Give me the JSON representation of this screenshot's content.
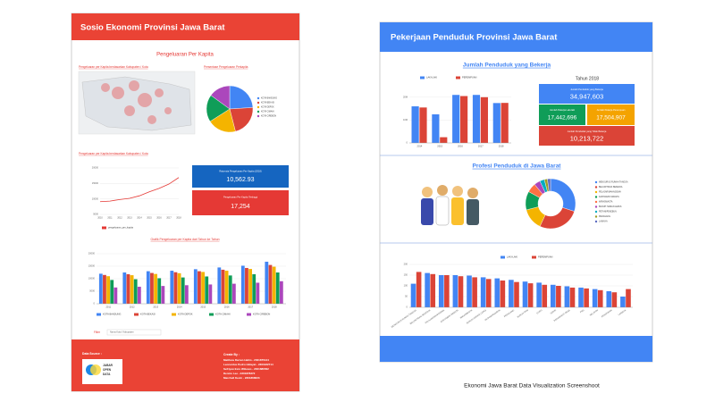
{
  "left": {
    "header": "Sosio Ekonomi Provinsi Jawa Barat",
    "section_title": "Pengeluaran Per Kapita",
    "map_title": "Pengeluaran per Kapita berdasarkan Kabupaten / Kota",
    "pie_chart": {
      "type": "pie",
      "title": "Persentase Pengeluaran Perkapita",
      "categories": [
        "KOTA BANDUNG",
        "KOTA BEKASI",
        "KOTA DEPOK",
        "KOTA CIMAHI",
        "KOTA CIREBON"
      ],
      "colors": [
        "#4285f4",
        "#db4437",
        "#f4b400",
        "#0f9d58",
        "#ab47bc"
      ],
      "values": [
        24,
        22,
        20,
        19,
        15
      ]
    },
    "line_chart": {
      "type": "line",
      "title": "Pengeluaran per Kapita berdasarkan Kabupaten / Kota",
      "categories": [
        "2010",
        "2011",
        "2012",
        "2013",
        "2014",
        "2015",
        "2016",
        "2017",
        "2018"
      ],
      "series": [
        {
          "name": "pengeluaran_per_kapita",
          "color": "#e53935",
          "values": [
            9100,
            9300,
            9800,
            10200,
            11000,
            12300,
            13400,
            14800,
            16900
          ]
        }
      ],
      "ylim": [
        5000,
        20000
      ],
      "yticks": [
        5000,
        10000,
        15000,
        20000
      ]
    },
    "scorecards": [
      {
        "label": "Rata-rata Pengeluaran Per Kapita (2018)",
        "value": "10,562.93",
        "color": "#1565c0"
      },
      {
        "label": "Pengeluaran Per Kapita Tertinggi",
        "value": "17,254",
        "color": "#e53935"
      }
    ],
    "bar_chart": {
      "type": "bar",
      "title": "Grafik Pengeluaran per Kapita dari Tahun ke Tahun",
      "categories": [
        "2011",
        "2012",
        "2013",
        "2014",
        "2015",
        "2016",
        "2017",
        "2018"
      ],
      "series": [
        {
          "name": "KOTA BANDUNG",
          "color": "#4285f4",
          "values": [
            12000,
            12500,
            13000,
            13200,
            13800,
            14500,
            15200,
            16800
          ]
        },
        {
          "name": "KOTA BEKASI",
          "color": "#db4437",
          "values": [
            11500,
            11800,
            12300,
            12600,
            13000,
            13600,
            14300,
            15500
          ]
        },
        {
          "name": "KOTA DEPOK",
          "color": "#f4b400",
          "values": [
            11000,
            11400,
            11900,
            12200,
            12700,
            13200,
            13900,
            14800
          ]
        },
        {
          "name": "KOTA CIMAHI",
          "color": "#0f9d58",
          "values": [
            9500,
            9800,
            10200,
            10500,
            10900,
            11300,
            11800,
            12500
          ]
        },
        {
          "name": "KOTA CIREBON",
          "color": "#ab47bc",
          "values": [
            6500,
            6800,
            7100,
            7400,
            7700,
            8000,
            8400,
            9000
          ]
        }
      ],
      "ylim": [
        0,
        20000
      ],
      "yticks": [
        0,
        5000,
        10000,
        15000,
        20000
      ]
    },
    "filter": {
      "label": "Filter",
      "control": "Nama Kota / Kabupaten"
    },
    "footer": {
      "data_source": "Data Source :",
      "logo": [
        "JABAR",
        "OPEN",
        "DATA"
      ],
      "created_by": "Create By :",
      "members": [
        "Matthew Darren Halim - 2301875124",
        "Leonardus Pedro Hidayat - 2301932714",
        "Sefriyan Esto Wibowo - 2301886562",
        "Dennis Lee - 2301878372",
        "Marchell Kevin - 2301868623"
      ]
    }
  },
  "right": {
    "header": "Pekerjaan Penduduk Provinsi Jawa Barat",
    "section1_title": "Jumlah Penduduk yang Bekerja",
    "bar_chart": {
      "type": "bar",
      "categories": [
        "2014",
        "2015",
        "2016",
        "2017",
        "2018"
      ],
      "series": [
        {
          "name": "LAKI-LAKI",
          "color": "#4285f4",
          "values": [
            16000000,
            12500000,
            21000000,
            21000000,
            17442696
          ]
        },
        {
          "name": "PEREMPUAN",
          "color": "#db4437",
          "values": [
            15500000,
            2500000,
            20500000,
            20000000,
            17504907
          ]
        }
      ],
      "ylim": [
        0,
        25000000
      ],
      "yticks": [
        {
          "value": 0,
          "label": "0"
        },
        {
          "value": 10000000,
          "label": "10M"
        },
        {
          "value": 20000000,
          "label": "20M"
        }
      ]
    },
    "year_title": "Tahun 2018",
    "scorecards": [
      {
        "label": "Jumlah Penduduk yang Bekerja",
        "value": "34,947,603",
        "color": "#4285f4"
      },
      {
        "label": "Jumlah Pekerja Laki-laki",
        "value": "17,442,696",
        "color": "#0f9d58"
      },
      {
        "label": "Jumlah Pekerja Perempuan",
        "value": "17,504,907",
        "color": "#f4a300"
      },
      {
        "label": "Jumlah Penduduk yang Tidak Bekerja",
        "value": "10,213,722",
        "color": "#db4437"
      }
    ],
    "section2_title": "Profesi Penduduk di Jawa Barat",
    "donut_chart": {
      "type": "donut",
      "categories": [
        "MENGURUS RUMAH TANGGA",
        "BELUM/TIDAK BEKERJA",
        "PELAJAR/MAHASISWA",
        "KARYAWAN SWASTA",
        "WIRASWASTA",
        "BURUH HARIAN LEPAS",
        "PETANI/PEKEBUN",
        "PEDAGANG",
        "LAINNYA"
      ],
      "colors": [
        "#4285f4",
        "#db4437",
        "#f4b400",
        "#0f9d58",
        "#ff7043",
        "#ab47bc",
        "#00acc1",
        "#9e9d24",
        "#5c6bc0"
      ],
      "values": [
        30,
        27,
        14,
        12,
        6,
        4,
        3,
        2,
        2
      ]
    },
    "bottom_chart": {
      "type": "bar",
      "categories": [
        "MENGURUS RUMAH TANGGA",
        "BELUM/TIDAK BEKERJA",
        "PELAJAR/MAHASISWA",
        "KARYAWAN SWASTA",
        "WIRASWASTA",
        "BURUH HARIAN LEPAS",
        "PETANI/PEKEBUN",
        "PEDAGANG",
        "BURUH TANI",
        "GURU",
        "SOPIR",
        "PERANGKAT DESA",
        "PNS",
        "NELAYAN",
        "PENSIUNAN",
        "LAINNYA"
      ],
      "series": [
        {
          "name": "LAKI-LAKI",
          "color": "#4285f4",
          "values": [
            110,
            160,
            150,
            150,
            148,
            140,
            135,
            128,
            120,
            115,
            105,
            98,
            92,
            85,
            75,
            50
          ]
        },
        {
          "name": "PEREMPUAN",
          "color": "#db4437",
          "values": [
            165,
            155,
            150,
            145,
            140,
            132,
            125,
            118,
            112,
            105,
            100,
            92,
            88,
            80,
            70,
            85
          ]
        }
      ],
      "ylim": [
        0,
        200
      ],
      "yticks": [
        0,
        50,
        100,
        150,
        200
      ]
    }
  },
  "caption": "Ekonomi Jawa Barat Data Visualization Screenshoot"
}
